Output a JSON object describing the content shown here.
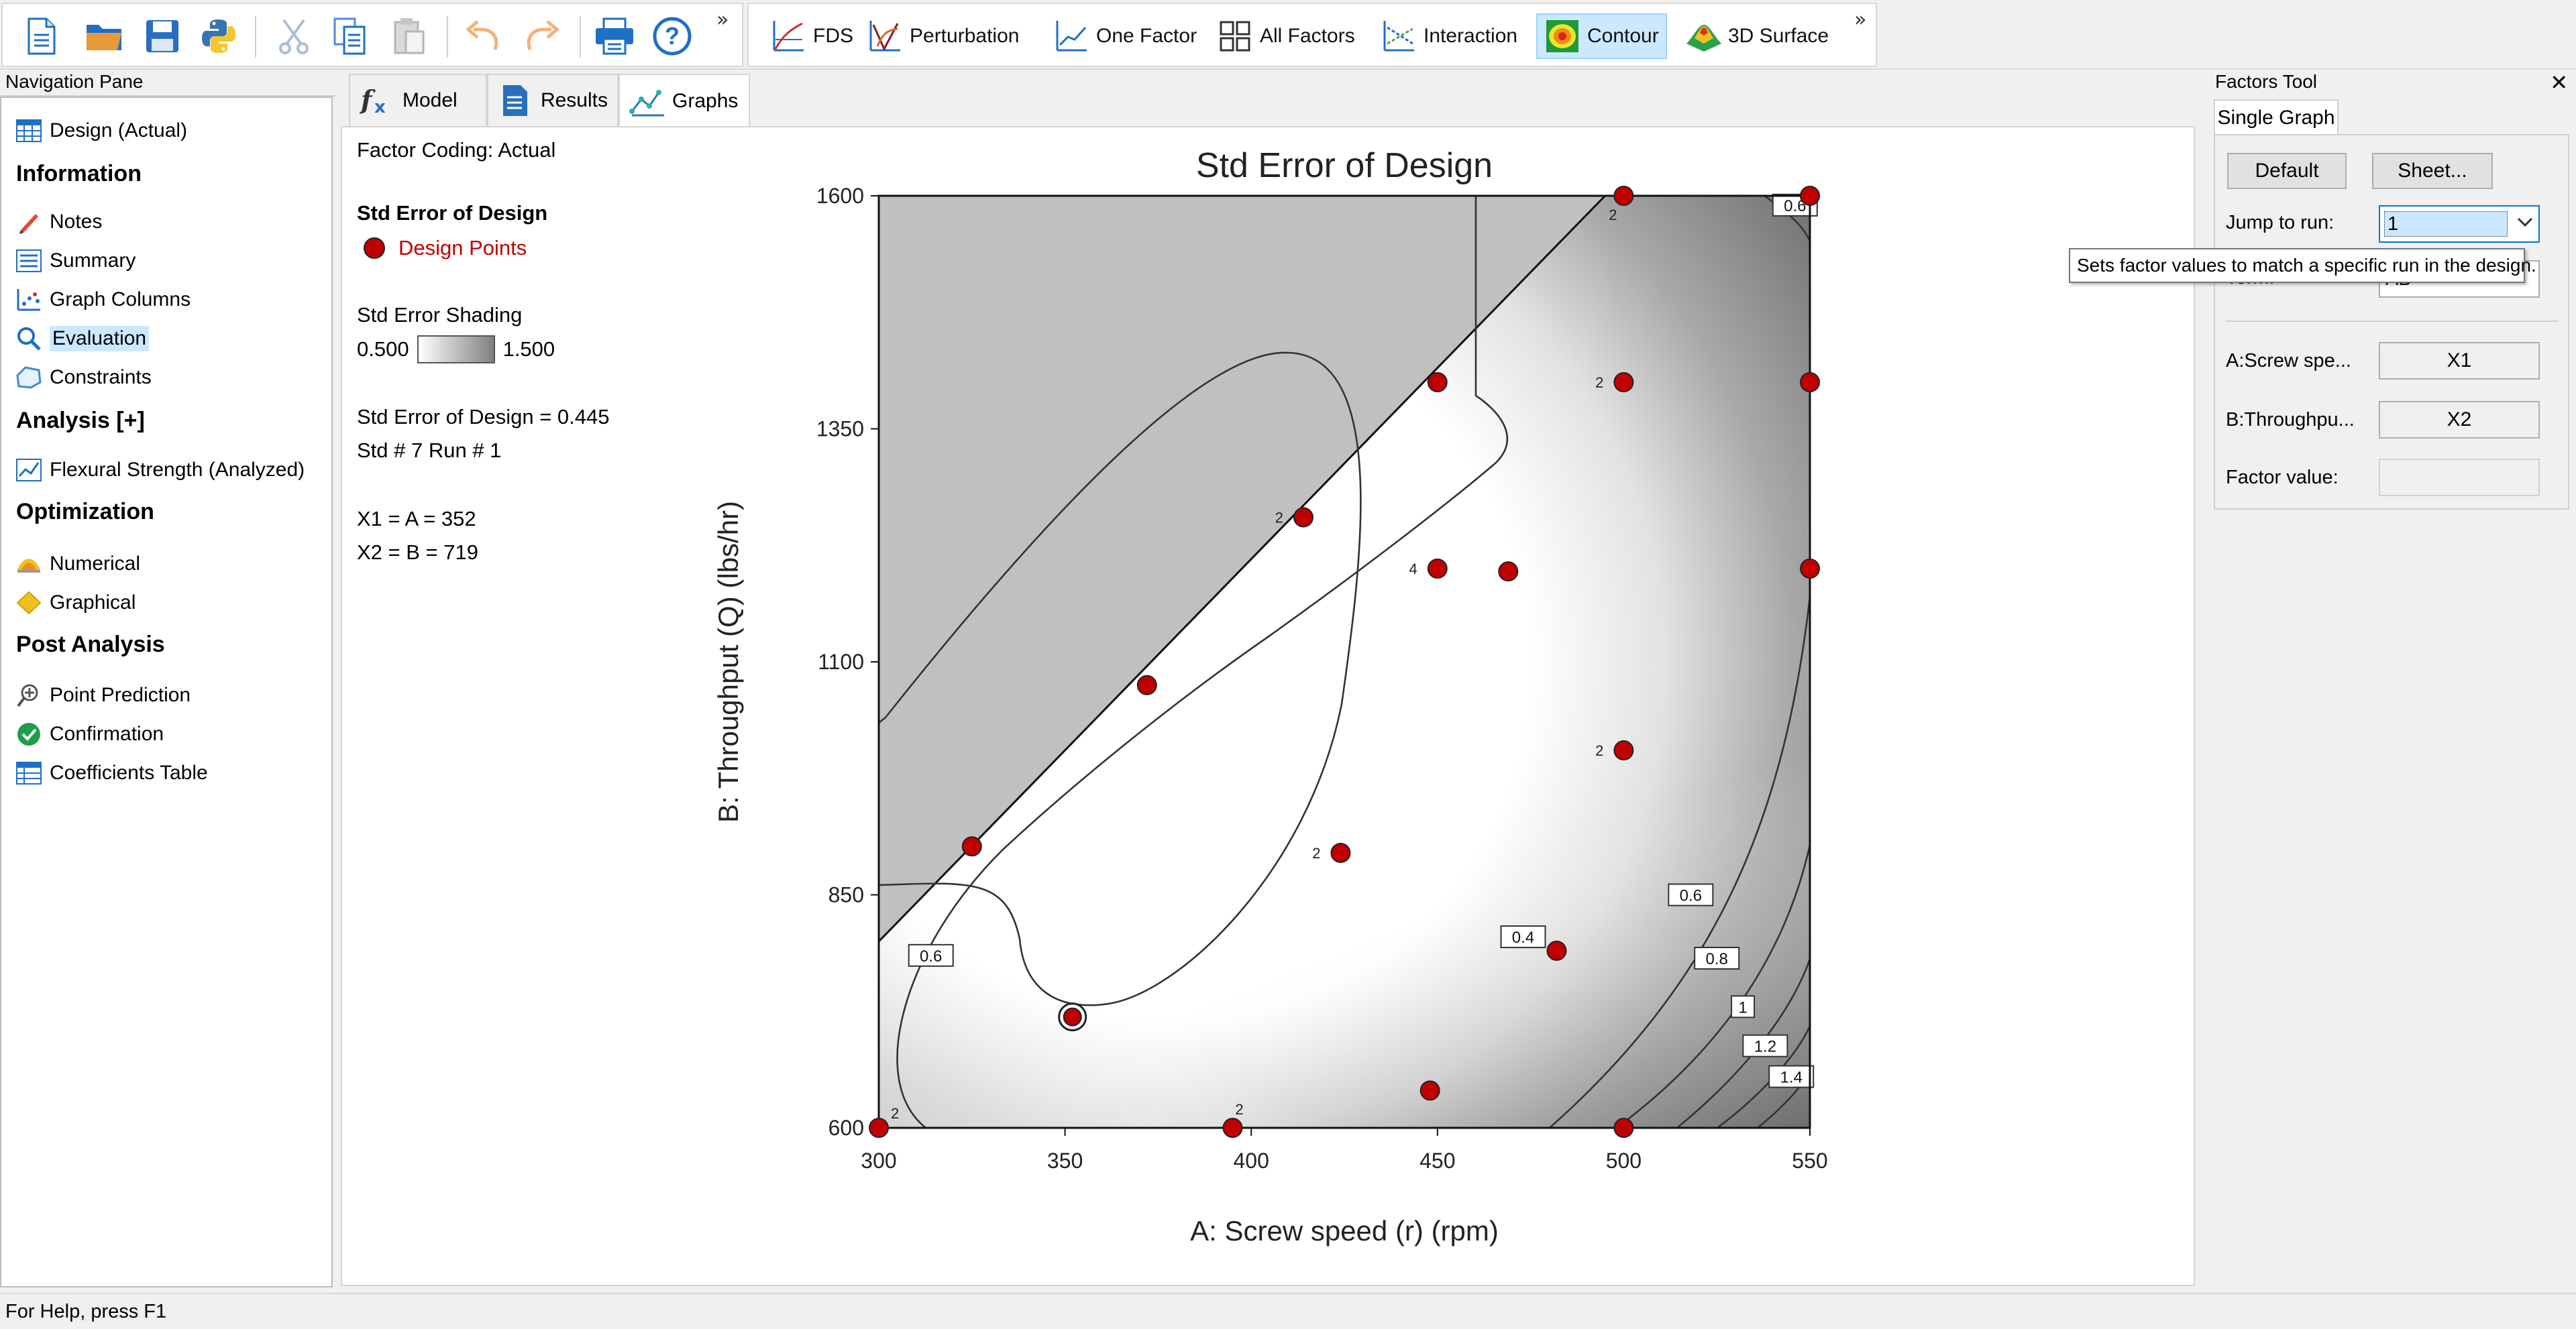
{
  "toolbar": {
    "graph_buttons": [
      {
        "label": "FDS",
        "icon": "fds-icon"
      },
      {
        "label": "Perturbation",
        "icon": "perturbation-icon"
      },
      {
        "label": "One Factor",
        "icon": "one-factor-icon"
      },
      {
        "label": "All Factors",
        "icon": "all-factors-icon"
      },
      {
        "label": "Interaction",
        "icon": "interaction-icon"
      },
      {
        "label": "Contour",
        "icon": "contour-icon"
      },
      {
        "label": "3D Surface",
        "icon": "3d-surface-icon"
      }
    ],
    "active_button": "Contour",
    "more_glyph": "»"
  },
  "nav": {
    "title": "Navigation Pane",
    "design": "Design (Actual)",
    "information": {
      "heading": "Information",
      "items": [
        "Notes",
        "Summary",
        "Graph Columns",
        "Evaluation",
        "Constraints"
      ]
    },
    "analysis": {
      "heading": "Analysis [+]",
      "items": [
        "Flexural Strength (Analyzed)"
      ]
    },
    "optimization": {
      "heading": "Optimization",
      "items": [
        "Numerical",
        "Graphical"
      ]
    },
    "post_analysis": {
      "heading": "Post Analysis",
      "items": [
        "Point Prediction",
        "Confirmation",
        "Coefficients Table"
      ]
    },
    "selected": "Evaluation"
  },
  "tabs": {
    "model": "Model",
    "results": "Results",
    "graphs": "Graphs",
    "active": "Graphs"
  },
  "info": {
    "factor_coding": "Factor Coding: Actual",
    "response_title": "Std Error of Design",
    "design_points": "Design Points",
    "shading_label": "Std Error Shading",
    "shading_min": "0.500",
    "shading_max": "1.500",
    "std_error_value": "Std Error of Design = 0.445",
    "std_run": "Std # 7 Run # 1",
    "x1": "X1 = A = 352",
    "x2": "X2 = B = 719"
  },
  "chart_data": {
    "type": "contour",
    "title": "Std Error of Design",
    "xlabel": "A: Screw speed (r) (rpm)",
    "ylabel": "B: Throughput (Q) (lbs/hr)",
    "xlim": [
      300,
      550
    ],
    "ylim": [
      600,
      1600
    ],
    "xticks": [
      "300",
      "350",
      "400",
      "450",
      "500",
      "550"
    ],
    "yticks": [
      "600",
      "850",
      "1100",
      "1350",
      "1600"
    ],
    "constraint_line": {
      "from": [
        300,
        800
      ],
      "to": [
        495,
        1600
      ]
    },
    "contour_labels": [
      {
        "label": "0.4",
        "x": 473,
        "y": 805
      },
      {
        "label": "0.6",
        "x": 314,
        "y": 785
      },
      {
        "label": "0.6",
        "x": 518,
        "y": 850
      },
      {
        "label": "0.6",
        "x": 546,
        "y": 1590
      },
      {
        "label": "0.8",
        "x": 525,
        "y": 782
      },
      {
        "label": "1",
        "x": 532,
        "y": 730
      },
      {
        "label": "1.2",
        "x": 538,
        "y": 688
      },
      {
        "label": "1.4",
        "x": 545,
        "y": 655
      }
    ],
    "design_points": [
      {
        "x": 300,
        "y": 600,
        "count": "2"
      },
      {
        "x": 395,
        "y": 600,
        "count": "2"
      },
      {
        "x": 500,
        "y": 600,
        "count": ""
      },
      {
        "x": 448,
        "y": 640,
        "count": ""
      },
      {
        "x": 482,
        "y": 790,
        "count": ""
      },
      {
        "x": 325,
        "y": 902,
        "count": ""
      },
      {
        "x": 424,
        "y": 895,
        "count": "2"
      },
      {
        "x": 372,
        "y": 1075,
        "count": ""
      },
      {
        "x": 500,
        "y": 1005,
        "count": "2"
      },
      {
        "x": 450,
        "y": 1200,
        "count": "4"
      },
      {
        "x": 469,
        "y": 1197,
        "count": ""
      },
      {
        "x": 414,
        "y": 1255,
        "count": "2"
      },
      {
        "x": 450,
        "y": 1400,
        "count": ""
      },
      {
        "x": 500,
        "y": 1400,
        "count": "2"
      },
      {
        "x": 500,
        "y": 1600,
        "count": "2"
      },
      {
        "x": 550,
        "y": 1600,
        "count": ""
      },
      {
        "x": 550,
        "y": 1400,
        "count": ""
      },
      {
        "x": 550,
        "y": 1200,
        "count": ""
      }
    ],
    "selected_point": {
      "x": 352,
      "y": 719
    },
    "point_color": "#c00000",
    "shading_low_color": "#ffffff",
    "shading_high_color": "#808080",
    "infeasible_color": "#c0c0c0"
  },
  "factors": {
    "title": "Factors Tool",
    "close_glyph": "✕",
    "tab": "Single Graph",
    "default_btn": "Default",
    "sheet_btn": "Sheet...",
    "jump_label": "Jump to run:",
    "jump_value": "1",
    "term_label": "Term:",
    "term_value": "AB",
    "factor_a_label": "A:Screw spe...",
    "factor_a_value": "X1",
    "factor_b_label": "B:Throughpu...",
    "factor_b_value": "X2",
    "factor_value_label": "Factor value:",
    "factor_value": "",
    "tooltip": "Sets factor values to match a specific run in the design."
  },
  "status": {
    "text": "For Help, press F1"
  }
}
